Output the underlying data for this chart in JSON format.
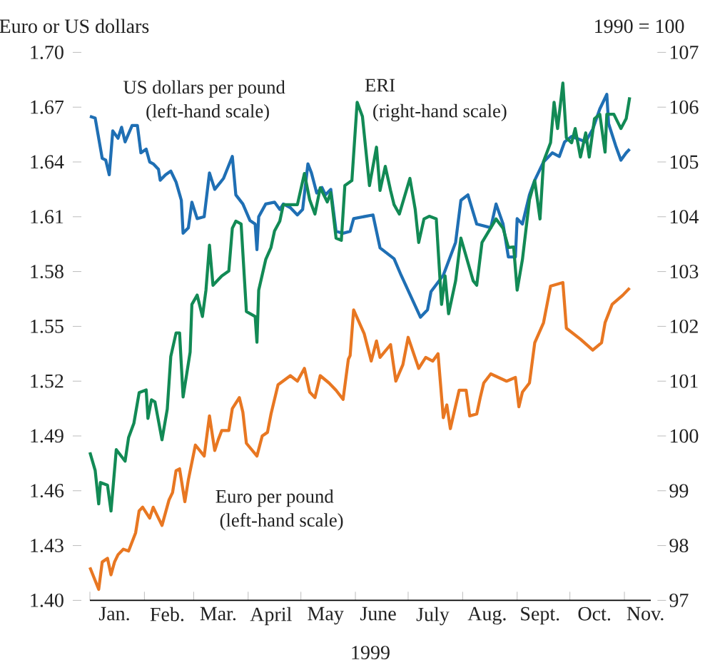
{
  "chart_data": {
    "type": "line",
    "ylabel": "Euro or US dollars",
    "y2label": "1990 = 100",
    "xlabel": "1999",
    "xlim": [
      "1999-01-01",
      "1999-11-16"
    ],
    "xticks": [
      {
        "value": "1999-01-01",
        "label": null
      },
      {
        "value": "1999-02-01",
        "label": null
      },
      {
        "value": "1999-03-01",
        "label": null
      },
      {
        "value": "1999-04-01",
        "label": null
      },
      {
        "value": "1999-05-01",
        "label": null
      },
      {
        "value": "1999-06-01",
        "label": null
      },
      {
        "value": "1999-07-01",
        "label": null
      },
      {
        "value": "1999-08-01",
        "label": null
      },
      {
        "value": "1999-09-01",
        "label": null
      },
      {
        "value": "1999-10-01",
        "label": null
      },
      {
        "value": "1999-11-01",
        "label": null
      },
      {
        "value": "1999-01-15",
        "label": "Jan."
      },
      {
        "value": "1999-02-14",
        "label": "Feb."
      },
      {
        "value": "1999-03-15",
        "label": "Mar."
      },
      {
        "value": "1999-04-14",
        "label": "April"
      },
      {
        "value": "1999-05-15",
        "label": "May"
      },
      {
        "value": "1999-06-14",
        "label": "June"
      },
      {
        "value": "1999-07-15",
        "label": "July"
      },
      {
        "value": "1999-08-15",
        "label": "Aug."
      },
      {
        "value": "1999-09-14",
        "label": "Sept."
      },
      {
        "value": "1999-10-15",
        "label": "Oct."
      },
      {
        "value": "1999-11-13",
        "label": "Nov."
      }
    ],
    "ylim": [
      1.4,
      1.7
    ],
    "yticks": [
      {
        "value": 1.4,
        "label": "1.40"
      },
      1.43,
      1.46,
      1.49,
      1.52,
      1.55,
      1.58,
      1.61,
      1.64,
      1.67,
      {
        "value": 1.7,
        "label": "1.70"
      }
    ],
    "y2lim": [
      97,
      107
    ],
    "y2ticks": [
      97,
      98,
      99,
      100,
      101,
      102,
      103,
      104,
      105,
      106,
      107
    ],
    "annotations": [
      "(left-hand scale)",
      "(right-hand scale)",
      "(left-hand scale)"
    ],
    "series": [
      {
        "name": "US dollars per pound",
        "color": "#1f6fb4",
        "axis": "y",
        "x": [
          "1999-01-01",
          "1999-01-04",
          "1999-01-08",
          "1999-01-10",
          "1999-01-12",
          "1999-01-14",
          "1999-01-17",
          "1999-01-19",
          "1999-01-21",
          "1999-01-25",
          "1999-01-28",
          "1999-01-30",
          "1999-02-02",
          "1999-02-04",
          "1999-02-06",
          "1999-02-09",
          "1999-02-10",
          "1999-02-13",
          "1999-02-16",
          "1999-02-19",
          "1999-02-22",
          "1999-02-23",
          "1999-02-26",
          "1999-02-28",
          "1999-03-03",
          "1999-03-07",
          "1999-03-10",
          "1999-03-13",
          "1999-03-18",
          "1999-03-23",
          "1999-03-25",
          "1999-03-29",
          "1999-04-02",
          "1999-04-05",
          "1999-04-06",
          "1999-04-07",
          "1999-04-11",
          "1999-04-16",
          "1999-04-19",
          "1999-04-21",
          "1999-04-25",
          "1999-04-29",
          "1999-05-02",
          "1999-05-05",
          "1999-05-07",
          "1999-05-10",
          "1999-05-13",
          "1999-05-15",
          "1999-05-18",
          "1999-05-21",
          "1999-05-25",
          "1999-05-29",
          "1999-05-31",
          "1999-06-11",
          "1999-06-15",
          "1999-06-23",
          "1999-06-27",
          "1999-07-08",
          "1999-07-12",
          "1999-07-14",
          "1999-07-21",
          "1999-07-28",
          "1999-07-31",
          "1999-08-04",
          "1999-08-09",
          "1999-08-17",
          "1999-08-20",
          "1999-08-24",
          "1999-08-27",
          "1999-08-31",
          "1999-09-01",
          "1999-09-04",
          "1999-09-08",
          "1999-09-11",
          "1999-09-13",
          "1999-09-16",
          "1999-09-21",
          "1999-09-25",
          "1999-09-28",
          "1999-10-02",
          "1999-10-10",
          "1999-10-14",
          "1999-10-18",
          "1999-10-22",
          "1999-10-23",
          "1999-10-27",
          "1999-10-30",
          "1999-11-02",
          "1999-11-04"
        ],
        "values": [
          1.665,
          1.664,
          1.642,
          1.641,
          1.633,
          1.657,
          1.653,
          1.659,
          1.651,
          1.66,
          1.66,
          1.645,
          1.647,
          1.64,
          1.639,
          1.636,
          1.63,
          1.633,
          1.635,
          1.629,
          1.619,
          1.601,
          1.604,
          1.618,
          1.609,
          1.61,
          1.634,
          1.625,
          1.631,
          1.643,
          1.622,
          1.617,
          1.608,
          1.606,
          1.592,
          1.61,
          1.617,
          1.618,
          1.614,
          1.617,
          1.615,
          1.611,
          1.614,
          1.639,
          1.634,
          1.623,
          1.626,
          1.622,
          1.625,
          1.602,
          1.601,
          1.602,
          1.609,
          1.611,
          1.593,
          1.587,
          1.578,
          1.555,
          1.559,
          1.569,
          1.578,
          1.596,
          1.619,
          1.622,
          1.606,
          1.604,
          1.617,
          1.606,
          1.588,
          1.588,
          1.609,
          1.606,
          1.622,
          1.63,
          1.634,
          1.64,
          1.645,
          1.643,
          1.651,
          1.654,
          1.651,
          1.658,
          1.669,
          1.677,
          1.661,
          1.649,
          1.641,
          1.645,
          1.647
        ]
      },
      {
        "name": "ERI",
        "color": "#128a55",
        "axis": "y2",
        "x": [
          "1999-01-01",
          "1999-01-04",
          "1999-01-06",
          "1999-01-07",
          "1999-01-11",
          "1999-01-13",
          "1999-01-16",
          "1999-01-21",
          "1999-01-23",
          "1999-01-26",
          "1999-01-29",
          "1999-02-02",
          "1999-02-03",
          "1999-02-05",
          "1999-02-07",
          "1999-02-11",
          "1999-02-14",
          "1999-02-16",
          "1999-02-19",
          "1999-02-21",
          "1999-02-23",
          "1999-02-27",
          "1999-02-28",
          "1999-03-03",
          "1999-03-06",
          "1999-03-08",
          "1999-03-10",
          "1999-03-12",
          "1999-03-17",
          "1999-03-21",
          "1999-03-23",
          "1999-03-25",
          "1999-03-28",
          "1999-03-31",
          "1999-04-05",
          "1999-04-06",
          "1999-04-07",
          "1999-04-11",
          "1999-04-14",
          "1999-04-16",
          "1999-04-19",
          "1999-04-21",
          "1999-04-29",
          "1999-05-03",
          "1999-05-06",
          "1999-05-09",
          "1999-05-12",
          "1999-05-16",
          "1999-05-18",
          "1999-05-21",
          "1999-05-24",
          "1999-05-26",
          "1999-05-30",
          "1999-06-02",
          "1999-06-05",
          "1999-06-09",
          "1999-06-11",
          "1999-06-13",
          "1999-06-15",
          "1999-06-18",
          "1999-06-21",
          "1999-06-23",
          "1999-06-26",
          "1999-07-02",
          "1999-07-05",
          "1999-07-07",
          "1999-07-10",
          "1999-07-13",
          "1999-07-17",
          "1999-07-20",
          "1999-07-22",
          "1999-07-24",
          "1999-07-28",
          "1999-07-31",
          "1999-08-07",
          "1999-08-09",
          "1999-08-12",
          "1999-08-20",
          "1999-08-24",
          "1999-08-27",
          "1999-08-30",
          "1999-09-01",
          "1999-09-04",
          "1999-09-08",
          "1999-09-11",
          "1999-09-14",
          "1999-09-16",
          "1999-09-20",
          "1999-09-22",
          "1999-09-24",
          "1999-09-27",
          "1999-09-29",
          "1999-10-02",
          "1999-10-04",
          "1999-10-07",
          "1999-10-10",
          "1999-10-12",
          "1999-10-15",
          "1999-10-18",
          "1999-10-21",
          "1999-10-22",
          "1999-10-26",
          "1999-10-30",
          "1999-11-02",
          "1999-11-04"
        ],
        "values": [
          99.7,
          99.37,
          98.76,
          99.15,
          99.1,
          98.63,
          99.75,
          99.54,
          99.97,
          100.23,
          100.79,
          100.84,
          100.32,
          100.66,
          100.62,
          99.93,
          100.49,
          101.45,
          101.88,
          101.88,
          100.71,
          101.53,
          102.4,
          102.57,
          102.18,
          102.66,
          103.48,
          102.75,
          102.92,
          103.01,
          103.79,
          103.92,
          103.87,
          102.27,
          102.18,
          101.71,
          102.66,
          103.22,
          103.44,
          103.74,
          103.92,
          104.22,
          104.22,
          104.79,
          104.31,
          104.05,
          104.53,
          104.27,
          104.44,
          103.61,
          103.57,
          104.57,
          104.66,
          106.09,
          105.83,
          104.57,
          104.92,
          105.27,
          104.48,
          104.92,
          104.48,
          104.22,
          104.05,
          104.7,
          104.14,
          103.53,
          103.96,
          104.01,
          103.96,
          102.4,
          102.92,
          102.23,
          102.83,
          103.61,
          102.83,
          102.75,
          103.53,
          103.96,
          103.79,
          103.44,
          103.45,
          102.66,
          103.22,
          104.31,
          104.66,
          103.96,
          105.01,
          105.35,
          106.09,
          105.61,
          106.44,
          105.44,
          105.35,
          105.61,
          105.09,
          105.53,
          105.09,
          105.79,
          105.87,
          105.18,
          105.87,
          105.87,
          105.61,
          105.79,
          106.18
        ]
      },
      {
        "name": "Euro per pound",
        "color": "#e87722",
        "axis": "y",
        "x": [
          "1999-01-01",
          "1999-01-06",
          "1999-01-08",
          "1999-01-11",
          "1999-01-13",
          "1999-01-15",
          "1999-01-17",
          "1999-01-20",
          "1999-01-23",
          "1999-01-27",
          "1999-01-29",
          "1999-01-31",
          "1999-02-04",
          "1999-02-06",
          "1999-02-11",
          "1999-02-15",
          "1999-02-17",
          "1999-02-19",
          "1999-02-21",
          "1999-02-24",
          "1999-02-26",
          "1999-03-02",
          "1999-03-07",
          "1999-03-10",
          "1999-03-13",
          "1999-03-15",
          "1999-03-17",
          "1999-03-21",
          "1999-03-23",
          "1999-03-27",
          "1999-03-29",
          "1999-03-31",
          "1999-04-06",
          "1999-04-09",
          "1999-04-12",
          "1999-04-14",
          "1999-04-18",
          "1999-04-25",
          "1999-04-29",
          "1999-05-03",
          "1999-05-06",
          "1999-05-09",
          "1999-05-12",
          "1999-05-17",
          "1999-05-21",
          "1999-05-25",
          "1999-05-28",
          "1999-05-29",
          "1999-05-31",
          "1999-06-06",
          "1999-06-10",
          "1999-06-13",
          "1999-06-15",
          "1999-06-21",
          "1999-06-24",
          "1999-06-28",
          "1999-07-01",
          "1999-07-07",
          "1999-07-11",
          "1999-07-15",
          "1999-07-18",
          "1999-07-21",
          "1999-07-23",
          "1999-07-25",
          "1999-07-30",
          "1999-08-03",
          "1999-08-05",
          "1999-08-09",
          "1999-08-11",
          "1999-08-13",
          "1999-08-17",
          "1999-08-26",
          "1999-08-31",
          "1999-09-02",
          "1999-09-04",
          "1999-09-08",
          "1999-09-11",
          "1999-09-16",
          "1999-09-20",
          "1999-09-27",
          "1999-09-29",
          "1999-10-07",
          "1999-10-14",
          "1999-10-19",
          "1999-10-21",
          "1999-10-25",
          "1999-10-31",
          "1999-11-04"
        ],
        "values": [
          1.418,
          1.406,
          1.421,
          1.423,
          1.414,
          1.421,
          1.425,
          1.428,
          1.427,
          1.437,
          1.449,
          1.451,
          1.445,
          1.451,
          1.441,
          1.455,
          1.459,
          1.471,
          1.472,
          1.454,
          1.466,
          1.485,
          1.479,
          1.501,
          1.482,
          1.488,
          1.493,
          1.493,
          1.505,
          1.511,
          1.503,
          1.486,
          1.479,
          1.49,
          1.492,
          1.502,
          1.518,
          1.523,
          1.52,
          1.527,
          1.514,
          1.511,
          1.523,
          1.519,
          1.515,
          1.51,
          1.532,
          1.534,
          1.559,
          1.546,
          1.531,
          1.542,
          1.533,
          1.54,
          1.52,
          1.529,
          1.544,
          1.527,
          1.533,
          1.531,
          1.535,
          1.5,
          1.507,
          1.494,
          1.515,
          1.515,
          1.501,
          1.502,
          1.511,
          1.519,
          1.524,
          1.52,
          1.522,
          1.506,
          1.514,
          1.519,
          1.541,
          1.552,
          1.572,
          1.574,
          1.549,
          1.543,
          1.537,
          1.541,
          1.552,
          1.562,
          1.567,
          1.571
        ]
      }
    ]
  }
}
